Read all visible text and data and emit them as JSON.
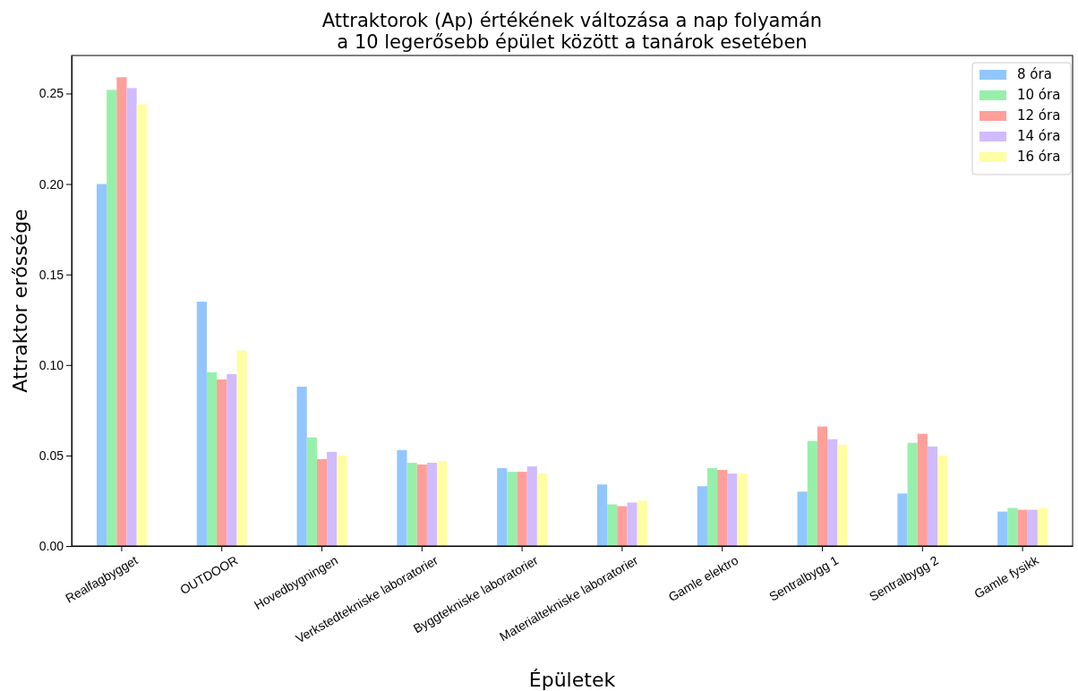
{
  "chart_data": {
    "type": "bar",
    "title": "Attraktorok (Ap) értékének változása a nap folyamán\na 10 legerősebb épület között a tanárok esetében",
    "xlabel": "Épületek",
    "ylabel": "Attraktor erőssége",
    "categories": [
      "Realfagbygget",
      "OUTDOOR",
      "Hovedbygningen",
      "Verkstedtekniske laboratorier",
      "Byggtekniske laboratorier",
      "Materialtekniske laboratorier",
      "Gamle elektro",
      "Sentralbygg 1",
      "Sentralbygg 2",
      "Gamle fysikk"
    ],
    "series": [
      {
        "name": "8 óra",
        "color": "#92c6ff",
        "values": [
          0.2,
          0.135,
          0.088,
          0.053,
          0.043,
          0.034,
          0.033,
          0.03,
          0.029,
          0.019
        ]
      },
      {
        "name": "10 óra",
        "color": "#97f0aa",
        "values": [
          0.252,
          0.096,
          0.06,
          0.046,
          0.041,
          0.023,
          0.043,
          0.058,
          0.057,
          0.021
        ]
      },
      {
        "name": "12 óra",
        "color": "#ff9f9a",
        "values": [
          0.259,
          0.092,
          0.048,
          0.045,
          0.041,
          0.022,
          0.042,
          0.066,
          0.062,
          0.02
        ]
      },
      {
        "name": "14 óra",
        "color": "#d0bbff",
        "values": [
          0.253,
          0.095,
          0.052,
          0.046,
          0.044,
          0.024,
          0.04,
          0.059,
          0.055,
          0.02
        ]
      },
      {
        "name": "16 óra",
        "color": "#fffea3",
        "values": [
          0.244,
          0.108,
          0.05,
          0.047,
          0.04,
          0.025,
          0.04,
          0.056,
          0.05,
          0.021
        ]
      }
    ],
    "ylim": [
      0,
      0.271
    ],
    "yticks": [
      {
        "value": 0,
        "label": "0.00"
      },
      {
        "value": 0.05,
        "label": "0.05"
      },
      {
        "value": 0.1,
        "label": "0.10"
      },
      {
        "value": 0.15,
        "label": "0.15"
      },
      {
        "value": 0.2,
        "label": "0.20"
      },
      {
        "value": 0.25,
        "label": "0.25"
      }
    ],
    "legend": "top right"
  }
}
